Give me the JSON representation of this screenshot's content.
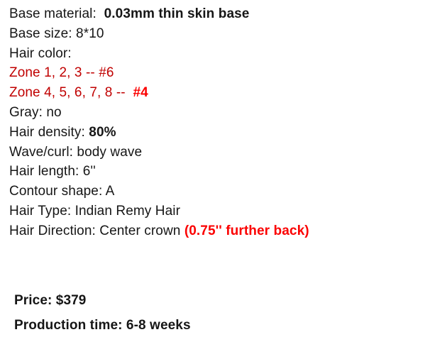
{
  "page": {
    "background": "#ffffff",
    "kind": "product-spec-note"
  },
  "colors": {
    "text_black": "#161616",
    "zone_dark_red": "#c00000",
    "highlight_bright_red": "#fb0000"
  },
  "styles": {
    "normal": {
      "color_key": "text_black",
      "bold": false
    },
    "bold": {
      "color_key": "text_black",
      "bold": true
    },
    "dark-red": {
      "color_key": "zone_dark_red",
      "bold": false
    },
    "bright-red-bold": {
      "color_key": "highlight_bright_red",
      "bold": true
    }
  },
  "spec_lines": [
    {
      "name": "base-material",
      "segments": [
        {
          "text": "Base material:  ",
          "style": "normal"
        },
        {
          "text": "0.03mm thin skin base",
          "style": "bold"
        }
      ]
    },
    {
      "name": "base-size",
      "segments": [
        {
          "text": "Base size: 8*10",
          "style": "normal"
        }
      ]
    },
    {
      "name": "hair-color",
      "segments": [
        {
          "text": "Hair color:",
          "style": "normal"
        }
      ]
    },
    {
      "name": "zone-1-2-3",
      "segments": [
        {
          "text": "Zone 1, 2, 3 -- #6",
          "style": "dark-red"
        }
      ]
    },
    {
      "name": "zone-4-5-6-7-8",
      "segments": [
        {
          "text": "Zone 4, 5, 6, 7, 8 -- ",
          "style": "dark-red"
        },
        {
          "text": " #4",
          "style": "bright-red-bold"
        }
      ]
    },
    {
      "name": "gray",
      "segments": [
        {
          "text": "Gray: no",
          "style": "normal"
        }
      ]
    },
    {
      "name": "hair-density",
      "segments": [
        {
          "text": "Hair density: ",
          "style": "normal"
        },
        {
          "text": "80%",
          "style": "bold"
        }
      ]
    },
    {
      "name": "wave-curl",
      "segments": [
        {
          "text": "Wave/curl: body wave",
          "style": "normal"
        }
      ]
    },
    {
      "name": "hair-length",
      "segments": [
        {
          "text": "Hair length: 6''",
          "style": "normal"
        }
      ]
    },
    {
      "name": "contour-shape",
      "segments": [
        {
          "text": "Contour shape: A",
          "style": "normal"
        }
      ]
    },
    {
      "name": "hair-type",
      "segments": [
        {
          "text": "Hair Type: Indian Remy Hair",
          "style": "normal"
        }
      ]
    },
    {
      "name": "hair-direction",
      "segments": [
        {
          "text": "Hair Direction: Center crown ",
          "style": "normal"
        },
        {
          "text": "(0.75'' further back)",
          "style": "bright-red-bold"
        }
      ]
    }
  ],
  "summary_lines": [
    {
      "name": "price",
      "segments": [
        {
          "text": "Price: $379",
          "style": "bold"
        }
      ]
    },
    {
      "name": "production-time",
      "segments": [
        {
          "text": "Production time: 6-8 weeks",
          "style": "bold"
        }
      ]
    }
  ]
}
